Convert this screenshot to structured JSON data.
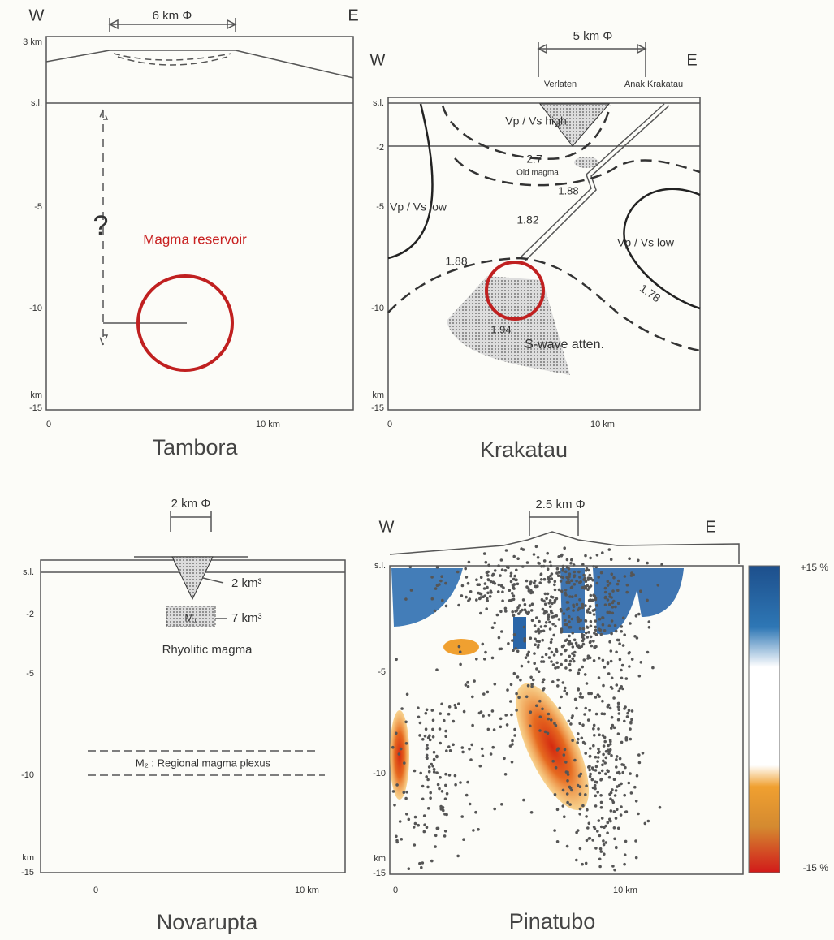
{
  "panels": [
    {
      "title": "Tambora",
      "west": "W",
      "east": "E",
      "diameter": "6 km Φ",
      "y_ticks": [
        "3 km",
        "s.l.",
        "-5",
        "-10",
        "km",
        "-15"
      ],
      "x_ticks": [
        "0",
        "10 km"
      ],
      "labels": [
        "?",
        "Magma reservoir"
      ]
    },
    {
      "title": "Krakatau",
      "west": "W",
      "east": "E",
      "diameter": "5 km Φ",
      "places": [
        "Verlaten",
        "Anak Krakatau"
      ],
      "y_ticks": [
        "s.l.",
        "-2",
        "-5",
        "-10",
        "km",
        "-15"
      ],
      "x_ticks": [
        "0",
        "10 km"
      ],
      "labels": [
        "Vp / Vs high",
        "2.7",
        "Old magma",
        "1.88",
        "Vp / Vs low",
        "1.82",
        "Vp / Vs low",
        "1.88",
        "1.78",
        "1.94",
        "S-wave atten."
      ]
    },
    {
      "title": "Novarupta",
      "diameter": "2 km Φ",
      "y_ticks": [
        "s.l.",
        "-2",
        "-5",
        "-10",
        "km",
        "-15"
      ],
      "x_ticks": [
        "0",
        "10 km"
      ],
      "labels": [
        "M₁",
        "2 km³",
        "7 km³",
        "Rhyolitic magma",
        "M₂ : Regional magma plexus"
      ]
    },
    {
      "title": "Pinatubo",
      "west": "W",
      "east": "E",
      "diameter": "2.5 km Φ",
      "y_ticks": [
        "s.l.",
        "-5",
        "-10",
        "km",
        "-15"
      ],
      "x_ticks": [
        "0",
        "10 km"
      ],
      "colorbar": [
        "+15 %",
        "-15 %"
      ]
    }
  ]
}
